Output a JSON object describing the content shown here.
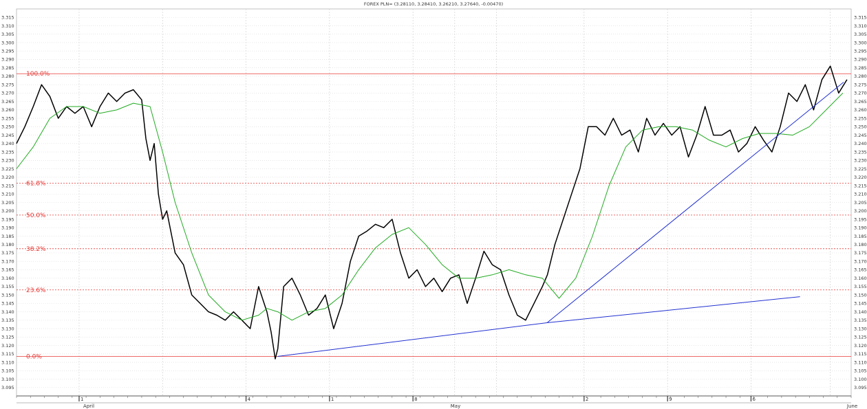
{
  "chart_data": {
    "type": "line",
    "title": "FOREX PLN= (3.28110, 3.28410, 3.26210, 3.27640, -0.00470)",
    "xlabel": "",
    "ylabel": "",
    "ylim": [
      3.09,
      3.32
    ],
    "y_ticks": [
      "3.095",
      "3.100",
      "3.105",
      "3.110",
      "3.115",
      "3.120",
      "3.125",
      "3.130",
      "3.135",
      "3.140",
      "3.145",
      "3.150",
      "3.155",
      "3.160",
      "3.165",
      "3.170",
      "3.175",
      "3.180",
      "3.185",
      "3.190",
      "3.195",
      "3.200",
      "3.205",
      "3.210",
      "3.215",
      "3.220",
      "3.225",
      "3.230",
      "3.235",
      "3.240",
      "3.245",
      "3.250",
      "3.255",
      "3.260",
      "3.265",
      "3.270",
      "3.275",
      "3.280",
      "3.285",
      "3.290",
      "3.295",
      "3.300",
      "3.305",
      "3.310",
      "3.315"
    ],
    "x_month_labels": [
      {
        "label": "April",
        "x": 0.08
      },
      {
        "label": "May",
        "x": 0.52
      },
      {
        "label": "June",
        "x": 0.995
      }
    ],
    "x_week_labels": [
      {
        "label": "1",
        "x": 0.075
      },
      {
        "label": "4",
        "x": 0.275
      },
      {
        "label": "1",
        "x": 0.375
      },
      {
        "label": "8",
        "x": 0.475
      },
      {
        "label": "2",
        "x": 0.68
      },
      {
        "label": "9",
        "x": 0.78
      },
      {
        "label": "6",
        "x": 0.88
      }
    ],
    "grid": true,
    "fib_levels": [
      {
        "label": "100.0%",
        "value": 3.2815
      },
      {
        "label": "61.8%",
        "value": 3.2165
      },
      {
        "label": "50.0%",
        "value": 3.1975
      },
      {
        "label": "38.2%",
        "value": 3.1775
      },
      {
        "label": "23.6%",
        "value": 3.153
      },
      {
        "label": "0.0%",
        "value": 3.1135
      }
    ],
    "trendlines": [
      {
        "from": [
          0.3127,
          3.1135
        ],
        "to": [
          0.6357,
          3.1335
        ]
      },
      {
        "from": [
          0.6357,
          3.1335
        ],
        "to": [
          0.9387,
          3.149
        ]
      },
      {
        "from": [
          0.6357,
          3.1335
        ],
        "to": [
          0.991,
          3.2765
        ]
      }
    ],
    "series": [
      {
        "name": "",
        "color": "#000000",
        "x": [
          0.0,
          0.01,
          0.02,
          0.03,
          0.04,
          0.05,
          0.06,
          0.07,
          0.08,
          0.09,
          0.1,
          0.11,
          0.12,
          0.13,
          0.14,
          0.15,
          0.155,
          0.16,
          0.165,
          0.17,
          0.175,
          0.18,
          0.19,
          0.2,
          0.21,
          0.22,
          0.23,
          0.24,
          0.25,
          0.26,
          0.27,
          0.28,
          0.29,
          0.3,
          0.305,
          0.31,
          0.313,
          0.32,
          0.33,
          0.34,
          0.35,
          0.36,
          0.37,
          0.38,
          0.39,
          0.4,
          0.41,
          0.42,
          0.43,
          0.44,
          0.45,
          0.46,
          0.47,
          0.48,
          0.49,
          0.5,
          0.51,
          0.52,
          0.53,
          0.54,
          0.55,
          0.56,
          0.57,
          0.58,
          0.59,
          0.6,
          0.61,
          0.62,
          0.63,
          0.636,
          0.645,
          0.655,
          0.665,
          0.675,
          0.685,
          0.695,
          0.705,
          0.715,
          0.725,
          0.735,
          0.745,
          0.755,
          0.765,
          0.775,
          0.785,
          0.795,
          0.805,
          0.815,
          0.825,
          0.835,
          0.845,
          0.855,
          0.865,
          0.875,
          0.885,
          0.895,
          0.905,
          0.915,
          0.925,
          0.935,
          0.945,
          0.955,
          0.965,
          0.975,
          0.985,
          0.995
        ],
        "values": [
          3.24,
          3.25,
          3.262,
          3.275,
          3.268,
          3.255,
          3.262,
          3.258,
          3.262,
          3.25,
          3.262,
          3.27,
          3.265,
          3.27,
          3.272,
          3.266,
          3.243,
          3.23,
          3.24,
          3.21,
          3.195,
          3.2,
          3.175,
          3.168,
          3.15,
          3.145,
          3.14,
          3.138,
          3.135,
          3.14,
          3.135,
          3.13,
          3.155,
          3.14,
          3.128,
          3.112,
          3.118,
          3.155,
          3.16,
          3.15,
          3.138,
          3.142,
          3.15,
          3.13,
          3.145,
          3.17,
          3.185,
          3.188,
          3.192,
          3.19,
          3.195,
          3.175,
          3.16,
          3.165,
          3.155,
          3.16,
          3.152,
          3.16,
          3.162,
          3.145,
          3.16,
          3.176,
          3.168,
          3.165,
          3.15,
          3.138,
          3.135,
          3.145,
          3.155,
          3.162,
          3.18,
          3.195,
          3.21,
          3.225,
          3.25,
          3.25,
          3.245,
          3.255,
          3.245,
          3.248,
          3.235,
          3.255,
          3.245,
          3.252,
          3.245,
          3.25,
          3.232,
          3.245,
          3.262,
          3.245,
          3.245,
          3.248,
          3.235,
          3.24,
          3.25,
          3.242,
          3.235,
          3.25,
          3.27,
          3.265,
          3.275,
          3.26,
          3.278,
          3.286,
          3.27,
          3.278
        ]
      },
      {
        "name": "",
        "color": "#22aa22",
        "x": [
          0.0,
          0.02,
          0.04,
          0.06,
          0.08,
          0.1,
          0.12,
          0.14,
          0.16,
          0.175,
          0.19,
          0.21,
          0.23,
          0.25,
          0.27,
          0.29,
          0.3,
          0.313,
          0.33,
          0.35,
          0.37,
          0.39,
          0.41,
          0.43,
          0.45,
          0.47,
          0.49,
          0.51,
          0.53,
          0.55,
          0.57,
          0.59,
          0.61,
          0.63,
          0.65,
          0.67,
          0.69,
          0.71,
          0.73,
          0.75,
          0.77,
          0.79,
          0.81,
          0.83,
          0.85,
          0.87,
          0.89,
          0.91,
          0.93,
          0.95,
          0.97,
          0.99
        ],
        "values": [
          3.225,
          3.238,
          3.255,
          3.262,
          3.262,
          3.258,
          3.26,
          3.264,
          3.262,
          3.235,
          3.205,
          3.175,
          3.15,
          3.14,
          3.135,
          3.138,
          3.142,
          3.14,
          3.135,
          3.14,
          3.142,
          3.15,
          3.165,
          3.178,
          3.186,
          3.19,
          3.18,
          3.168,
          3.16,
          3.16,
          3.162,
          3.165,
          3.162,
          3.16,
          3.148,
          3.16,
          3.185,
          3.215,
          3.238,
          3.248,
          3.25,
          3.25,
          3.248,
          3.242,
          3.238,
          3.243,
          3.246,
          3.246,
          3.245,
          3.25,
          3.26,
          3.27
        ]
      }
    ]
  }
}
